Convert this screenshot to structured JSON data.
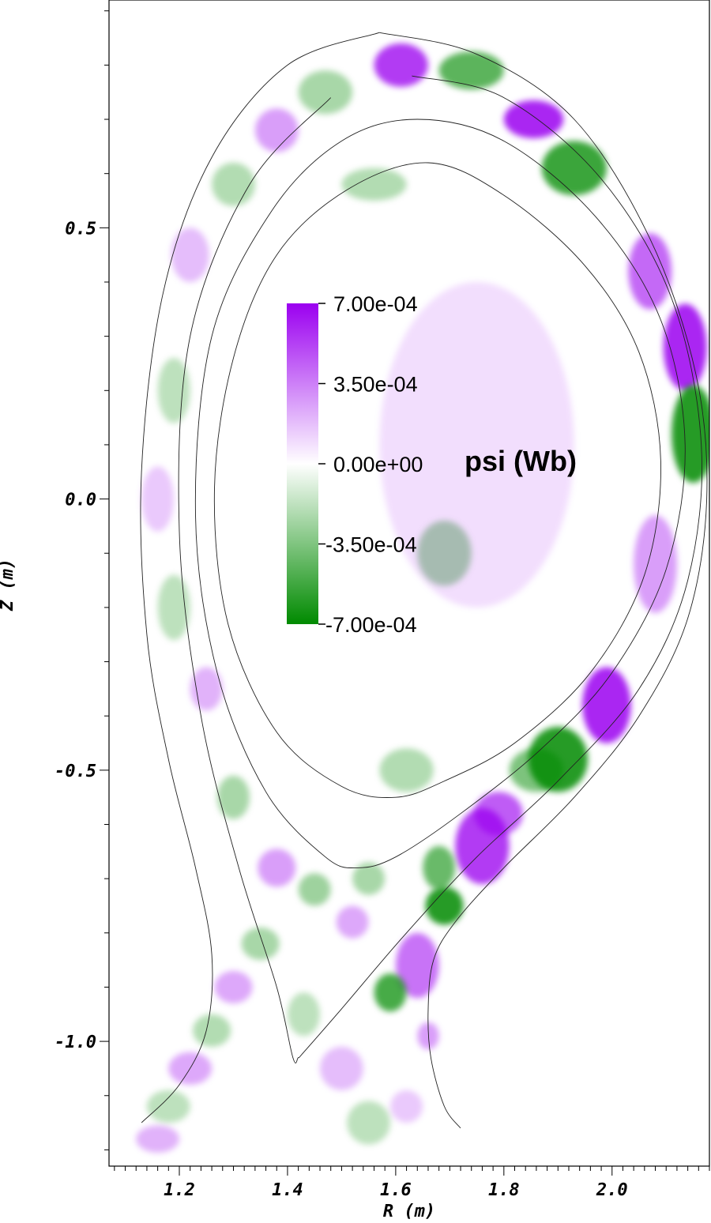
{
  "chart_data": {
    "type": "heatmap",
    "title": "",
    "xlabel": "R (m)",
    "ylabel": "Z (m)",
    "xlim": [
      1.07,
      2.18
    ],
    "ylim": [
      -1.23,
      0.92
    ],
    "x_ticks": [
      {
        "value": 1.2,
        "label": "1.2"
      },
      {
        "value": 1.4,
        "label": "1.4"
      },
      {
        "value": 1.6,
        "label": "1.6"
      },
      {
        "value": 1.8,
        "label": "1.8"
      },
      {
        "value": 2.0,
        "label": "2.0"
      }
    ],
    "y_ticks": [
      {
        "value": 0.5,
        "label": "0.5"
      },
      {
        "value": 0.0,
        "label": "0.0"
      },
      {
        "value": -0.5,
        "label": "-0.5"
      },
      {
        "value": -1.0,
        "label": "-1.0"
      }
    ],
    "colorbar": {
      "title": "psi (Wb)",
      "min": -0.0007,
      "max": 0.0007,
      "ticks": [
        {
          "value": 0.0007,
          "label": "7.00e-04"
        },
        {
          "value": 0.00035,
          "label": "3.50e-04"
        },
        {
          "value": 0.0,
          "label": "0.00e+00"
        },
        {
          "value": -0.00035,
          "label": "-3.50e-04"
        },
        {
          "value": -0.0007,
          "label": "-7.00e-04"
        }
      ],
      "positive_color": "#9b00f0",
      "zero_color": "#ffffff",
      "negative_color": "#008a00"
    },
    "contours": [
      {
        "name": "inner",
        "points": [
          [
            1.66,
            0.62
          ],
          [
            1.8,
            0.56
          ],
          [
            1.95,
            0.43
          ],
          [
            2.05,
            0.27
          ],
          [
            2.09,
            0.07
          ],
          [
            2.06,
            -0.14
          ],
          [
            1.96,
            -0.32
          ],
          [
            1.82,
            -0.45
          ],
          [
            1.69,
            -0.52
          ],
          [
            1.6,
            -0.55
          ],
          [
            1.5,
            -0.53
          ],
          [
            1.38,
            -0.43
          ],
          [
            1.29,
            -0.23
          ],
          [
            1.265,
            0.02
          ],
          [
            1.3,
            0.26
          ],
          [
            1.38,
            0.45
          ],
          [
            1.51,
            0.57
          ]
        ]
      },
      {
        "name": "second",
        "points": [
          [
            1.64,
            0.7
          ],
          [
            1.8,
            0.66
          ],
          [
            1.97,
            0.52
          ],
          [
            2.09,
            0.33
          ],
          [
            2.135,
            0.1
          ],
          [
            2.1,
            -0.13
          ],
          [
            2.0,
            -0.32
          ],
          [
            1.87,
            -0.46
          ],
          [
            1.72,
            -0.58
          ],
          [
            1.6,
            -0.66
          ],
          [
            1.53,
            -0.68
          ],
          [
            1.47,
            -0.66
          ],
          [
            1.36,
            -0.54
          ],
          [
            1.27,
            -0.32
          ],
          [
            1.23,
            -0.03
          ],
          [
            1.26,
            0.3
          ],
          [
            1.37,
            0.53
          ],
          [
            1.5,
            0.66
          ]
        ]
      },
      {
        "name": "third",
        "points": [
          [
            1.63,
            0.78
          ],
          [
            1.8,
            0.74
          ],
          [
            1.98,
            0.59
          ],
          [
            2.11,
            0.37
          ],
          [
            2.165,
            0.1
          ],
          [
            2.14,
            -0.15
          ],
          [
            2.05,
            -0.35
          ],
          [
            1.9,
            -0.52
          ],
          [
            1.75,
            -0.66
          ],
          [
            1.62,
            -0.8
          ],
          [
            1.5,
            -0.94
          ],
          [
            1.43,
            -1.02
          ],
          [
            1.42,
            -1.03
          ],
          [
            1.41,
            -1.03
          ],
          [
            1.38,
            -0.9
          ],
          [
            1.31,
            -0.68
          ],
          [
            1.24,
            -0.4
          ],
          [
            1.2,
            -0.06
          ],
          [
            1.22,
            0.3
          ],
          [
            1.33,
            0.58
          ],
          [
            1.48,
            0.74
          ]
        ]
      },
      {
        "name": "outer",
        "points": [
          [
            1.57,
            0.86
          ],
          [
            1.75,
            0.82
          ],
          [
            1.93,
            0.7
          ],
          [
            2.07,
            0.48
          ],
          [
            2.155,
            0.23
          ],
          [
            2.175,
            0.0
          ],
          [
            2.14,
            -0.22
          ],
          [
            2.05,
            -0.4
          ],
          [
            1.93,
            -0.55
          ],
          [
            1.8,
            -0.68
          ],
          [
            1.71,
            -0.78
          ],
          [
            1.67,
            -0.85
          ],
          [
            1.66,
            -0.94
          ],
          [
            1.665,
            -1.03
          ],
          [
            1.69,
            -1.12
          ],
          [
            1.72,
            -1.16
          ]
        ]
      },
      {
        "name": "outer-left",
        "points": [
          [
            1.57,
            0.86
          ],
          [
            1.4,
            0.8
          ],
          [
            1.26,
            0.63
          ],
          [
            1.17,
            0.38
          ],
          [
            1.13,
            0.05
          ],
          [
            1.14,
            -0.25
          ],
          [
            1.18,
            -0.48
          ],
          [
            1.23,
            -0.68
          ],
          [
            1.26,
            -0.84
          ],
          [
            1.25,
            -0.98
          ],
          [
            1.2,
            -1.08
          ],
          [
            1.13,
            -1.15
          ]
        ]
      }
    ],
    "features": [
      {
        "sign": 1,
        "amp": 1.0,
        "R": 1.855,
        "Z": 0.7,
        "rx": 0.055,
        "ry": 0.035
      },
      {
        "sign": -1,
        "amp": 0.9,
        "R": 1.93,
        "Z": 0.61,
        "rx": 0.06,
        "ry": 0.05
      },
      {
        "sign": -1,
        "amp": 0.75,
        "R": 1.74,
        "Z": 0.79,
        "rx": 0.06,
        "ry": 0.035
      },
      {
        "sign": 1,
        "amp": 0.9,
        "R": 1.61,
        "Z": 0.8,
        "rx": 0.05,
        "ry": 0.04
      },
      {
        "sign": 1,
        "amp": 0.7,
        "R": 2.07,
        "Z": 0.42,
        "rx": 0.04,
        "ry": 0.07
      },
      {
        "sign": 1,
        "amp": 1.0,
        "R": 2.135,
        "Z": 0.28,
        "rx": 0.04,
        "ry": 0.08
      },
      {
        "sign": -1,
        "amp": 1.0,
        "R": 2.15,
        "Z": 0.12,
        "rx": 0.04,
        "ry": 0.09
      },
      {
        "sign": 1,
        "amp": 0.45,
        "R": 2.08,
        "Z": -0.12,
        "rx": 0.04,
        "ry": 0.09
      },
      {
        "sign": 1,
        "amp": 1.0,
        "R": 1.99,
        "Z": -0.38,
        "rx": 0.045,
        "ry": 0.07
      },
      {
        "sign": -1,
        "amp": 1.0,
        "R": 1.9,
        "Z": -0.48,
        "rx": 0.055,
        "ry": 0.06
      },
      {
        "sign": -1,
        "amp": 0.6,
        "R": 1.86,
        "Z": -0.5,
        "rx": 0.05,
        "ry": 0.04
      },
      {
        "sign": 1,
        "amp": 0.9,
        "R": 1.76,
        "Z": -0.64,
        "rx": 0.05,
        "ry": 0.07
      },
      {
        "sign": 1,
        "amp": 0.75,
        "R": 1.79,
        "Z": -0.58,
        "rx": 0.045,
        "ry": 0.04
      },
      {
        "sign": -1,
        "amp": 1.0,
        "R": 1.69,
        "Z": -0.75,
        "rx": 0.035,
        "ry": 0.035
      },
      {
        "sign": -1,
        "amp": 0.7,
        "R": 1.68,
        "Z": -0.68,
        "rx": 0.03,
        "ry": 0.04
      },
      {
        "sign": 1,
        "amp": 0.65,
        "R": 1.64,
        "Z": -0.86,
        "rx": 0.04,
        "ry": 0.06
      },
      {
        "sign": -1,
        "amp": 0.85,
        "R": 1.59,
        "Z": -0.91,
        "rx": 0.03,
        "ry": 0.035
      },
      {
        "sign": 1,
        "amp": 0.45,
        "R": 1.66,
        "Z": -0.99,
        "rx": 0.02,
        "ry": 0.025
      },
      {
        "sign": -1,
        "amp": 0.4,
        "R": 1.69,
        "Z": -0.1,
        "rx": 0.05,
        "ry": 0.06
      },
      {
        "sign": -1,
        "amp": 0.35,
        "R": 1.62,
        "Z": -0.5,
        "rx": 0.05,
        "ry": 0.04
      },
      {
        "sign": -1,
        "amp": 0.35,
        "R": 1.56,
        "Z": 0.58,
        "rx": 0.06,
        "ry": 0.03
      },
      {
        "sign": -1,
        "amp": 0.4,
        "R": 1.47,
        "Z": 0.75,
        "rx": 0.05,
        "ry": 0.04
      },
      {
        "sign": 1,
        "amp": 0.45,
        "R": 1.38,
        "Z": 0.68,
        "rx": 0.04,
        "ry": 0.04
      },
      {
        "sign": -1,
        "amp": 0.35,
        "R": 1.3,
        "Z": 0.58,
        "rx": 0.04,
        "ry": 0.04
      },
      {
        "sign": 1,
        "amp": 0.3,
        "R": 1.22,
        "Z": 0.45,
        "rx": 0.035,
        "ry": 0.05
      },
      {
        "sign": -1,
        "amp": 0.3,
        "R": 1.19,
        "Z": 0.2,
        "rx": 0.03,
        "ry": 0.06
      },
      {
        "sign": 1,
        "amp": 0.25,
        "R": 1.16,
        "Z": 0.0,
        "rx": 0.03,
        "ry": 0.06
      },
      {
        "sign": -1,
        "amp": 0.3,
        "R": 1.19,
        "Z": -0.2,
        "rx": 0.03,
        "ry": 0.06
      },
      {
        "sign": 1,
        "amp": 0.35,
        "R": 1.25,
        "Z": -0.35,
        "rx": 0.03,
        "ry": 0.04
      },
      {
        "sign": -1,
        "amp": 0.4,
        "R": 1.3,
        "Z": -0.55,
        "rx": 0.03,
        "ry": 0.04
      },
      {
        "sign": 1,
        "amp": 0.45,
        "R": 1.38,
        "Z": -0.68,
        "rx": 0.035,
        "ry": 0.035
      },
      {
        "sign": -1,
        "amp": 0.45,
        "R": 1.45,
        "Z": -0.72,
        "rx": 0.03,
        "ry": 0.03
      },
      {
        "sign": 1,
        "amp": 0.4,
        "R": 1.52,
        "Z": -0.78,
        "rx": 0.03,
        "ry": 0.03
      },
      {
        "sign": -1,
        "amp": 0.4,
        "R": 1.55,
        "Z": -0.7,
        "rx": 0.03,
        "ry": 0.03
      },
      {
        "sign": -1,
        "amp": 0.4,
        "R": 1.35,
        "Z": -0.82,
        "rx": 0.035,
        "ry": 0.03
      },
      {
        "sign": 1,
        "amp": 0.4,
        "R": 1.3,
        "Z": -0.9,
        "rx": 0.035,
        "ry": 0.03
      },
      {
        "sign": -1,
        "amp": 0.35,
        "R": 1.26,
        "Z": -0.98,
        "rx": 0.035,
        "ry": 0.03
      },
      {
        "sign": 1,
        "amp": 0.4,
        "R": 1.22,
        "Z": -1.05,
        "rx": 0.04,
        "ry": 0.03
      },
      {
        "sign": -1,
        "amp": 0.3,
        "R": 1.18,
        "Z": -1.12,
        "rx": 0.04,
        "ry": 0.03
      },
      {
        "sign": 1,
        "amp": 0.35,
        "R": 1.16,
        "Z": -1.18,
        "rx": 0.04,
        "ry": 0.025
      },
      {
        "sign": -1,
        "amp": 0.3,
        "R": 1.43,
        "Z": -0.95,
        "rx": 0.03,
        "ry": 0.04
      },
      {
        "sign": 1,
        "amp": 0.3,
        "R": 1.5,
        "Z": -1.05,
        "rx": 0.04,
        "ry": 0.04
      },
      {
        "sign": -1,
        "amp": 0.3,
        "R": 1.55,
        "Z": -1.15,
        "rx": 0.04,
        "ry": 0.04
      },
      {
        "sign": 1,
        "amp": 0.25,
        "R": 1.62,
        "Z": -1.12,
        "rx": 0.03,
        "ry": 0.03
      },
      {
        "sign": 1,
        "amp": 0.15,
        "R": 1.75,
        "Z": 0.1,
        "rx": 0.18,
        "ry": 0.3
      }
    ]
  }
}
